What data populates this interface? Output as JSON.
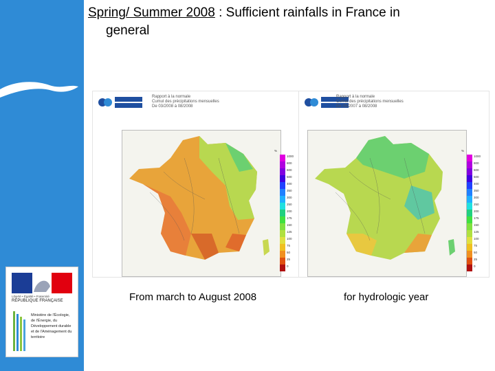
{
  "slide": {
    "title_underlined": "Spring/ Summer 2008",
    "title_rest_line1": " : Sufficient rainfalls in France in",
    "title_line2": "general"
  },
  "left_map": {
    "logo_text": "METEO FRANCE",
    "header_lines": [
      "Rapport à la normale",
      "Cumul des précipitations mensuelles",
      "De 03/2008 à 08/2008"
    ],
    "caption": "From march to August 2008"
  },
  "right_map": {
    "logo_text": "METEO FRANCE",
    "header_lines": [
      "Rapport à la normale",
      "Cumul des précipitations mensuelles",
      "De 09/2007 à 08/2008"
    ],
    "caption": "for hydrologic year"
  },
  "scale": {
    "unit": "%",
    "ticks": [
      "1000",
      "800",
      "600",
      "500",
      "400",
      "350",
      "300",
      "250",
      "200",
      "175",
      "150",
      "125",
      "100",
      "75",
      "50",
      "25",
      "0"
    ],
    "colors": [
      "#e000e0",
      "#b000e0",
      "#8000e0",
      "#4000e0",
      "#2040ff",
      "#2080ff",
      "#20b0ff",
      "#20e0e0",
      "#20d080",
      "#40e040",
      "#80e040",
      "#b0e040",
      "#e0e040",
      "#f0c020",
      "#f09020",
      "#e05010",
      "#b01010"
    ]
  },
  "emblem": {
    "motto": "Liberté • Égalité • Fraternité",
    "republic": "RÉPUBLIQUE FRANÇAISE",
    "ministry": "Ministère de l'Écologie, de l'Énergie, du Développement durable et de l'Aménagement du territoire"
  },
  "colors": {
    "side_band": "#2f8bd6",
    "flag_blue": "#1b3d96",
    "flag_red": "#e1000f"
  }
}
